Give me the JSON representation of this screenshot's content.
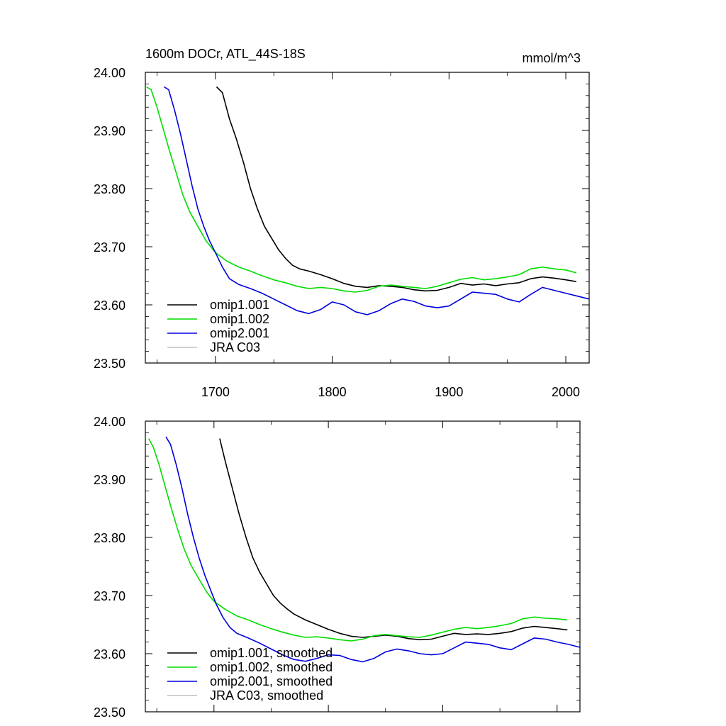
{
  "chart_data": [
    {
      "type": "line",
      "title": "1600m DOCr, ATL_44S-18S",
      "units": "mmol/m^3",
      "xlim": [
        1640,
        2020
      ],
      "ylim": [
        23.5,
        24.0
      ],
      "x_ticks": [
        1700,
        1800,
        1900,
        2000
      ],
      "y_ticks": [
        "23.50",
        "23.60",
        "23.70",
        "23.80",
        "23.90",
        "24.00"
      ],
      "legend_position": "bottom-left",
      "series": [
        {
          "name": "omip1.001",
          "color": "#000000",
          "x": [
            1701,
            1706,
            1712,
            1718,
            1724,
            1730,
            1736,
            1742,
            1748,
            1754,
            1760,
            1766,
            1772,
            1780,
            1790,
            1800,
            1810,
            1820,
            1830,
            1840,
            1850,
            1860,
            1870,
            1880,
            1890,
            1900,
            1910,
            1920,
            1930,
            1940,
            1950,
            1960,
            1970,
            1980,
            1990,
            2000,
            2009
          ],
          "y": [
            23.975,
            23.965,
            23.92,
            23.885,
            23.845,
            23.8,
            23.765,
            23.735,
            23.715,
            23.695,
            23.68,
            23.668,
            23.662,
            23.658,
            23.652,
            23.645,
            23.637,
            23.632,
            23.63,
            23.633,
            23.632,
            23.63,
            23.626,
            23.624,
            23.625,
            23.63,
            23.637,
            23.634,
            23.636,
            23.633,
            23.636,
            23.638,
            23.645,
            23.648,
            23.646,
            23.643,
            23.64
          ]
        },
        {
          "name": "omip1.002",
          "color": "#00dd00",
          "x": [
            1641,
            1645,
            1650,
            1655,
            1660,
            1666,
            1672,
            1678,
            1685,
            1692,
            1700,
            1710,
            1720,
            1730,
            1740,
            1750,
            1760,
            1770,
            1780,
            1790,
            1800,
            1810,
            1820,
            1830,
            1840,
            1850,
            1860,
            1870,
            1880,
            1890,
            1900,
            1910,
            1920,
            1930,
            1940,
            1950,
            1960,
            1970,
            1980,
            1990,
            2000,
            2009
          ],
          "y": [
            23.975,
            23.97,
            23.94,
            23.905,
            23.87,
            23.83,
            23.79,
            23.76,
            23.735,
            23.71,
            23.69,
            23.675,
            23.665,
            23.658,
            23.65,
            23.643,
            23.638,
            23.632,
            23.628,
            23.63,
            23.628,
            23.624,
            23.622,
            23.625,
            23.632,
            23.634,
            23.632,
            23.63,
            23.628,
            23.632,
            23.638,
            23.644,
            23.647,
            23.643,
            23.645,
            23.648,
            23.652,
            23.662,
            23.665,
            23.662,
            23.66,
            23.655
          ]
        },
        {
          "name": "omip2.001",
          "color": "#0000dd",
          "x": [
            1656,
            1660,
            1665,
            1670,
            1675,
            1680,
            1685,
            1690,
            1695,
            1700,
            1706,
            1712,
            1720,
            1730,
            1740,
            1750,
            1760,
            1770,
            1780,
            1790,
            1800,
            1810,
            1820,
            1830,
            1840,
            1850,
            1860,
            1870,
            1880,
            1890,
            1900,
            1910,
            1920,
            1930,
            1940,
            1950,
            1960,
            1970,
            1980,
            1990,
            2000,
            2010,
            2020
          ],
          "y": [
            23.975,
            23.97,
            23.935,
            23.895,
            23.85,
            23.805,
            23.765,
            23.735,
            23.71,
            23.69,
            23.665,
            23.645,
            23.635,
            23.628,
            23.62,
            23.61,
            23.6,
            23.59,
            23.585,
            23.592,
            23.605,
            23.6,
            23.588,
            23.583,
            23.59,
            23.602,
            23.61,
            23.606,
            23.598,
            23.595,
            23.598,
            23.61,
            23.622,
            23.62,
            23.618,
            23.61,
            23.605,
            23.618,
            23.63,
            23.625,
            23.62,
            23.615,
            23.61
          ]
        },
        {
          "name": "JRA C03",
          "color": "#c0c0c0",
          "x": [],
          "y": []
        }
      ]
    },
    {
      "type": "line",
      "title": "",
      "units": "",
      "xlim": [
        1640,
        2020
      ],
      "ylim": [
        23.5,
        24.0
      ],
      "x_ticks": [],
      "y_ticks": [
        "23.50",
        "23.60",
        "23.70",
        "23.80",
        "23.90",
        "24.00"
      ],
      "legend_position": "bottom-left",
      "series": [
        {
          "name": "omip1.001, smoothed",
          "color": "#000000",
          "x": [
            1705,
            1710,
            1716,
            1722,
            1728,
            1734,
            1740,
            1746,
            1752,
            1758,
            1764,
            1770,
            1780,
            1790,
            1800,
            1810,
            1820,
            1830,
            1840,
            1850,
            1860,
            1870,
            1880,
            1890,
            1900,
            1910,
            1920,
            1930,
            1940,
            1950,
            1960,
            1970,
            1980,
            1990,
            2000,
            2009
          ],
          "y": [
            23.97,
            23.93,
            23.885,
            23.84,
            23.8,
            23.765,
            23.74,
            23.72,
            23.7,
            23.687,
            23.677,
            23.668,
            23.658,
            23.65,
            23.642,
            23.635,
            23.63,
            23.628,
            23.63,
            23.632,
            23.63,
            23.626,
            23.624,
            23.625,
            23.63,
            23.635,
            23.633,
            23.634,
            23.633,
            23.635,
            23.638,
            23.644,
            23.647,
            23.645,
            23.643,
            23.641
          ]
        },
        {
          "name": "omip1.002, smoothed",
          "color": "#00dd00",
          "x": [
            1643,
            1647,
            1652,
            1657,
            1662,
            1668,
            1674,
            1680,
            1687,
            1694,
            1700,
            1710,
            1720,
            1730,
            1740,
            1750,
            1760,
            1770,
            1780,
            1790,
            1800,
            1810,
            1820,
            1830,
            1840,
            1850,
            1860,
            1870,
            1880,
            1890,
            1900,
            1910,
            1920,
            1930,
            1940,
            1950,
            1960,
            1970,
            1980,
            1990,
            2000,
            2009
          ],
          "y": [
            23.97,
            23.955,
            23.925,
            23.89,
            23.855,
            23.815,
            23.78,
            23.752,
            23.728,
            23.705,
            23.69,
            23.676,
            23.665,
            23.658,
            23.65,
            23.643,
            23.637,
            23.632,
            23.628,
            23.629,
            23.627,
            23.624,
            23.622,
            23.625,
            23.631,
            23.633,
            23.631,
            23.629,
            23.628,
            23.632,
            23.637,
            23.642,
            23.645,
            23.643,
            23.645,
            23.648,
            23.652,
            23.66,
            23.663,
            23.661,
            23.66,
            23.658
          ]
        },
        {
          "name": "omip2.001, smoothed",
          "color": "#0000dd",
          "x": [
            1658,
            1662,
            1667,
            1672,
            1677,
            1682,
            1687,
            1692,
            1697,
            1702,
            1708,
            1714,
            1720,
            1730,
            1740,
            1750,
            1760,
            1770,
            1780,
            1790,
            1800,
            1810,
            1820,
            1830,
            1840,
            1850,
            1860,
            1870,
            1880,
            1890,
            1900,
            1910,
            1920,
            1930,
            1940,
            1950,
            1960,
            1970,
            1980,
            1990,
            2000,
            2010,
            2020
          ],
          "y": [
            23.973,
            23.96,
            23.925,
            23.885,
            23.84,
            23.8,
            23.765,
            23.735,
            23.71,
            23.685,
            23.662,
            23.645,
            23.635,
            23.627,
            23.618,
            23.608,
            23.598,
            23.59,
            23.587,
            23.592,
            23.598,
            23.597,
            23.59,
            23.586,
            23.592,
            23.603,
            23.608,
            23.605,
            23.6,
            23.598,
            23.6,
            23.61,
            23.62,
            23.618,
            23.616,
            23.61,
            23.607,
            23.617,
            23.627,
            23.625,
            23.62,
            23.616,
            23.611
          ]
        },
        {
          "name": "JRA C03, smoothed",
          "color": "#c0c0c0",
          "x": [],
          "y": []
        }
      ]
    }
  ]
}
